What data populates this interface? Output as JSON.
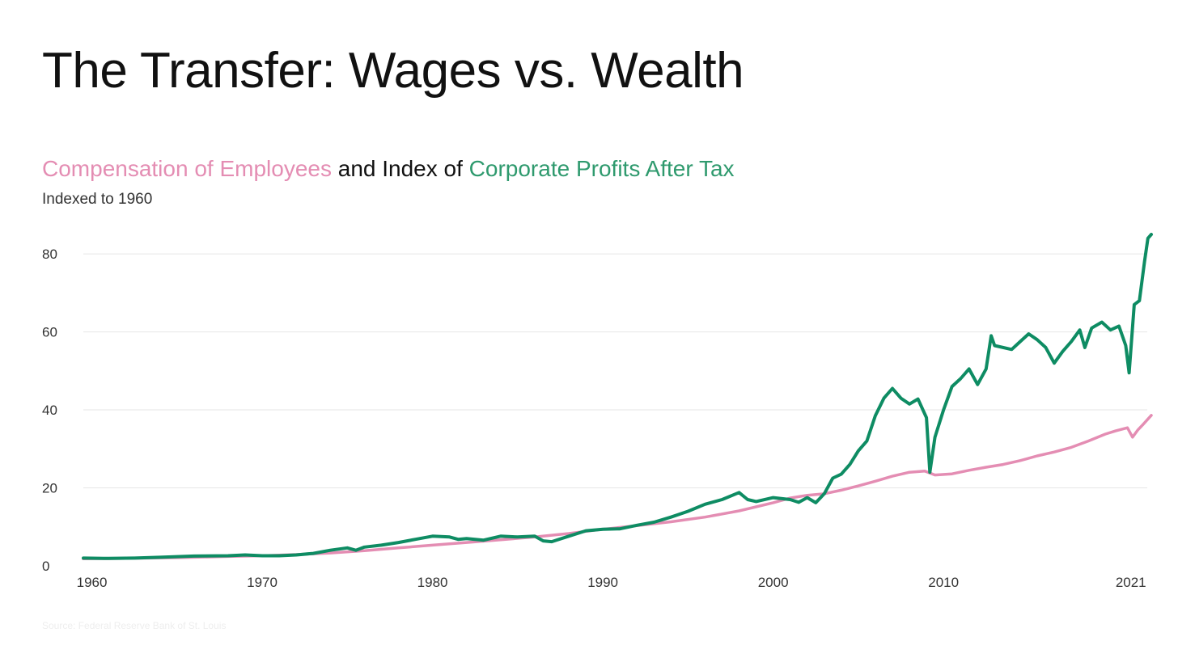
{
  "page": {
    "title": "The Transfer: Wages vs. Wealth",
    "source": "Source: Federal Reserve Bank of St. Louis"
  },
  "chart_data": {
    "type": "line",
    "title_parts": {
      "wages": "Compensation of Employees",
      "connector": "and Index of",
      "profits": "Corporate Profits After Tax"
    },
    "subtitle": "Indexed to 1960",
    "xlabel": "",
    "ylabel": "",
    "xlim": [
      1959.5,
      2022.2
    ],
    "ylim": [
      0,
      85
    ],
    "x_ticks": [
      {
        "value": 1960,
        "label": "1960"
      },
      {
        "value": 1970,
        "label": "1970"
      },
      {
        "value": 1980,
        "label": "1980"
      },
      {
        "value": 1990,
        "label": "1990"
      },
      {
        "value": 2000,
        "label": "2000"
      },
      {
        "value": 2010,
        "label": "2010"
      },
      {
        "value": 2021,
        "label": "2021"
      }
    ],
    "y_ticks": [
      {
        "value": 0,
        "label": "0"
      },
      {
        "value": 20,
        "label": "20"
      },
      {
        "value": 40,
        "label": "40"
      },
      {
        "value": 60,
        "label": "60"
      },
      {
        "value": 80,
        "label": "80"
      }
    ],
    "grid": true,
    "colors": {
      "wages": "#e48db3",
      "profits": "#0e8c63",
      "grid": "#e6e6e6",
      "title": "#111111"
    },
    "series": [
      {
        "name": "Compensation of Employees",
        "key": "wages",
        "points": [
          [
            1959.5,
            1.8
          ],
          [
            1962,
            1.9
          ],
          [
            1965,
            2.1
          ],
          [
            1968,
            2.4
          ],
          [
            1970,
            2.6
          ],
          [
            1972,
            2.9
          ],
          [
            1974,
            3.3
          ],
          [
            1976,
            3.9
          ],
          [
            1978,
            4.6
          ],
          [
            1980,
            5.3
          ],
          [
            1982,
            6.0
          ],
          [
            1984,
            6.7
          ],
          [
            1986,
            7.4
          ],
          [
            1988,
            8.3
          ],
          [
            1990,
            9.4
          ],
          [
            1992,
            10.3
          ],
          [
            1994,
            11.3
          ],
          [
            1996,
            12.5
          ],
          [
            1998,
            14.1
          ],
          [
            2000,
            16.2
          ],
          [
            2001,
            17.4
          ],
          [
            2002,
            18.1
          ],
          [
            2003,
            18.5
          ],
          [
            2004,
            19.4
          ],
          [
            2005,
            20.5
          ],
          [
            2006,
            21.7
          ],
          [
            2007,
            23.0
          ],
          [
            2008,
            24.0
          ],
          [
            2008.9,
            24.3
          ],
          [
            2009.5,
            23.3
          ],
          [
            2010.5,
            23.6
          ],
          [
            2011.5,
            24.5
          ],
          [
            2012.5,
            25.3
          ],
          [
            2013.5,
            26.0
          ],
          [
            2014.5,
            27.0
          ],
          [
            2015.5,
            28.2
          ],
          [
            2016.5,
            29.2
          ],
          [
            2017.5,
            30.4
          ],
          [
            2018.5,
            32.0
          ],
          [
            2019.5,
            33.8
          ],
          [
            2020.1,
            34.6
          ],
          [
            2020.8,
            35.4
          ],
          [
            2021.1,
            33.0
          ],
          [
            2021.4,
            34.8
          ],
          [
            2021.7,
            36.2
          ],
          [
            2022.2,
            38.6
          ]
        ]
      },
      {
        "name": "Corporate Profits After Tax",
        "key": "profits",
        "points": [
          [
            1959.5,
            2.0
          ],
          [
            1961,
            1.9
          ],
          [
            1962.5,
            2.0
          ],
          [
            1964,
            2.2
          ],
          [
            1966,
            2.5
          ],
          [
            1968,
            2.6
          ],
          [
            1969,
            2.8
          ],
          [
            1970,
            2.6
          ],
          [
            1971,
            2.6
          ],
          [
            1972,
            2.8
          ],
          [
            1973,
            3.2
          ],
          [
            1974,
            4.0
          ],
          [
            1975,
            4.6
          ],
          [
            1975.5,
            4.0
          ],
          [
            1976,
            4.8
          ],
          [
            1977,
            5.3
          ],
          [
            1978,
            6.0
          ],
          [
            1979,
            6.8
          ],
          [
            1980,
            7.6
          ],
          [
            1981,
            7.4
          ],
          [
            1981.5,
            6.8
          ],
          [
            1982,
            7.0
          ],
          [
            1983,
            6.6
          ],
          [
            1984,
            7.6
          ],
          [
            1985,
            7.4
          ],
          [
            1986,
            7.6
          ],
          [
            1986.5,
            6.4
          ],
          [
            1987,
            6.2
          ],
          [
            1988,
            7.6
          ],
          [
            1989,
            9.0
          ],
          [
            1990,
            9.4
          ],
          [
            1991,
            9.5
          ],
          [
            1992,
            10.4
          ],
          [
            1993,
            11.2
          ],
          [
            1994,
            12.5
          ],
          [
            1995,
            14.0
          ],
          [
            1996,
            15.8
          ],
          [
            1997,
            17.0
          ],
          [
            1998,
            18.8
          ],
          [
            1998.5,
            17.0
          ],
          [
            1999,
            16.5
          ],
          [
            2000,
            17.5
          ],
          [
            2001,
            17.0
          ],
          [
            2001.5,
            16.3
          ],
          [
            2002,
            17.5
          ],
          [
            2002.5,
            16.2
          ],
          [
            2003,
            18.5
          ],
          [
            2003.5,
            22.5
          ],
          [
            2004,
            23.5
          ],
          [
            2004.5,
            26.0
          ],
          [
            2005,
            29.5
          ],
          [
            2005.5,
            32.0
          ],
          [
            2006,
            38.5
          ],
          [
            2006.5,
            43.0
          ],
          [
            2007,
            45.5
          ],
          [
            2007.5,
            43.0
          ],
          [
            2008,
            41.5
          ],
          [
            2008.5,
            42.8
          ],
          [
            2009,
            38.0
          ],
          [
            2009.2,
            24.0
          ],
          [
            2009.5,
            33.0
          ],
          [
            2010,
            40.0
          ],
          [
            2010.5,
            46.0
          ],
          [
            2011,
            48.0
          ],
          [
            2011.5,
            50.5
          ],
          [
            2012,
            46.5
          ],
          [
            2012.5,
            50.5
          ],
          [
            2012.8,
            59.0
          ],
          [
            2013,
            56.5
          ],
          [
            2014,
            55.5
          ],
          [
            2014.5,
            57.5
          ],
          [
            2015,
            59.5
          ],
          [
            2015.5,
            58.0
          ],
          [
            2016,
            56.0
          ],
          [
            2016.5,
            52.0
          ],
          [
            2017,
            55.0
          ],
          [
            2017.5,
            57.5
          ],
          [
            2018,
            60.5
          ],
          [
            2018.3,
            56.0
          ],
          [
            2018.7,
            61.0
          ],
          [
            2019.3,
            62.5
          ],
          [
            2019.8,
            60.5
          ],
          [
            2020.3,
            61.5
          ],
          [
            2020.7,
            56.5
          ],
          [
            2020.9,
            49.5
          ],
          [
            2021.2,
            67.0
          ],
          [
            2021.5,
            68.0
          ],
          [
            2021.8,
            78.0
          ],
          [
            2022.0,
            84.0
          ],
          [
            2022.2,
            85.0
          ]
        ]
      }
    ]
  }
}
